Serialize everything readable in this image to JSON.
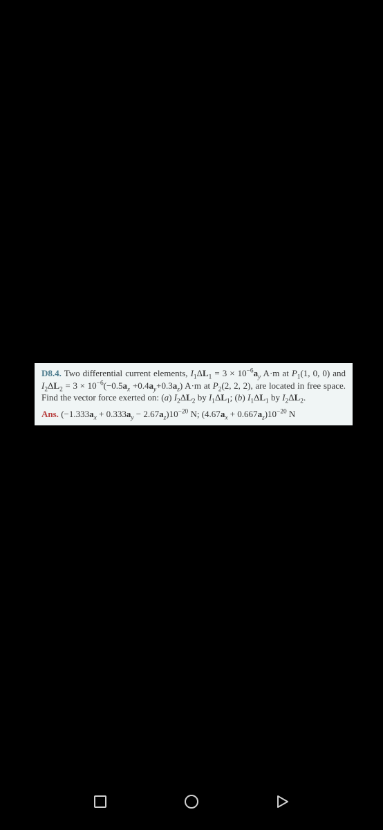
{
  "problem": {
    "label": "D8.4.",
    "text_html": "Two differential current elements, <span class=\"ital\">I</span><sub>1</sub>Δ<b>L</b><sub>1</sub> = 3 × 10<sup>−6</sup><b>a</b><sub><span class=\"ital\">y</span></sub> A·m at <span class=\"ital\">P</span><sub>1</sub>(1, 0, 0) and <span class=\"ital\">I</span><sub>2</sub>Δ<b>L</b><sub>2</sub> = 3 × 10<sup>−6</sup>(−0.5<b>a</b><sub><span class=\"ital\">x</span></sub> +0.4<b>a</b><sub><span class=\"ital\">y</span></sub>+0.3<b>a</b><sub><span class=\"ital\">z</span></sub>) A·m at <span class=\"ital\">P</span><sub>2</sub>(2, 2, 2), are located in free space. Find the vector force exerted on: (<span class=\"ital\">a</span>) <span class=\"ital\">I</span><sub>2</sub>Δ<b>L</b><sub>2</sub> by <span class=\"ital\">I</span><sub>1</sub>Δ<b>L</b><sub>1</sub>; (<span class=\"ital\">b</span>) <span class=\"ital\">I</span><sub>1</sub>Δ<b>L</b><sub>1</sub> by <span class=\"ital\">I</span><sub>2</sub>Δ<b>L</b><sub>2</sub>."
  },
  "answer": {
    "label": "Ans.",
    "text_html": "(−1.333<b>a</b><sub><span class=\"ital\">x</span></sub> + 0.333<b>a</b><sub><span class=\"ital\">y</span></sub> − 2.67<b>a</b><sub><span class=\"ital\">z</span></sub>)10<sup>−20</sup> N; (4.67<b>a</b><sub><span class=\"ital\">x</span></sub> + 0.667<b>a</b><sub><span class=\"ital\">z</span></sub>)10<sup>−20</sup> N"
  },
  "colors": {
    "problem_label": "#4a7a8c",
    "answer_label": "#b84040",
    "text": "#333333",
    "block_bg": "#f0f5f5",
    "page_bg": "#000000",
    "nav_icon": "#d0d0d0"
  }
}
